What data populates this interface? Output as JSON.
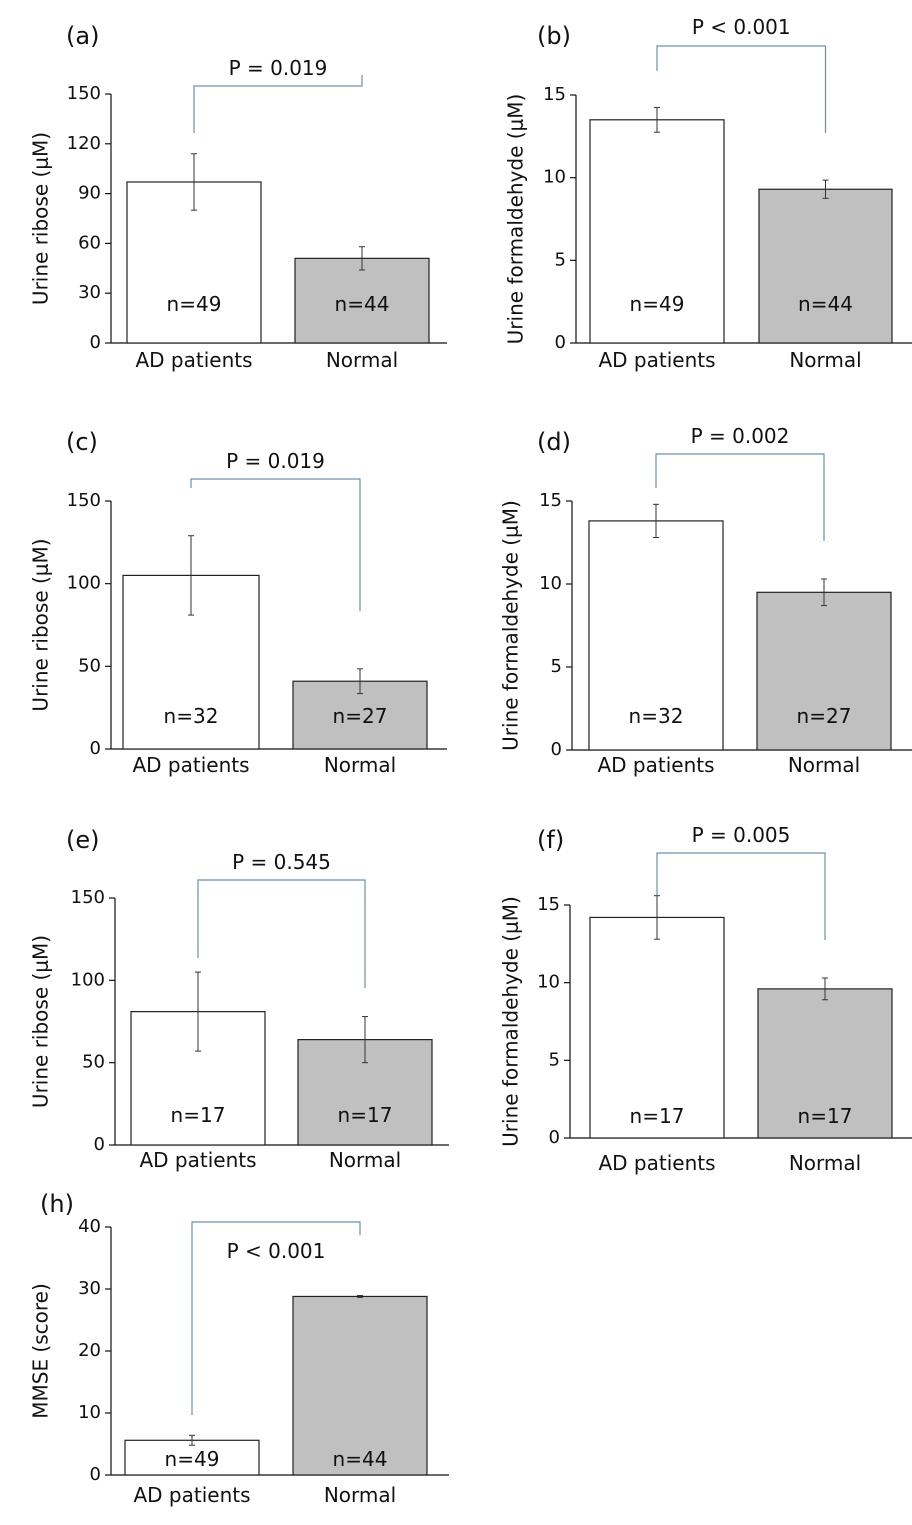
{
  "colors": {
    "open_bar": "#ffffff",
    "filled_bar": "#c0c0c0",
    "bracket": "#6f8fa6",
    "axis": "#111111"
  },
  "chart_data": [
    {
      "panel": "(a)",
      "type": "bar",
      "ylabel": "Urine ribose (μM)",
      "ylim": [
        0,
        150
      ],
      "yticks": [
        0,
        30,
        60,
        90,
        120,
        150
      ],
      "categories": [
        "AD patients",
        "Normal"
      ],
      "values": [
        97,
        51
      ],
      "errors": [
        17,
        7
      ],
      "n_labels": [
        "n=49",
        "n=44"
      ],
      "p_label": "P = 0.019"
    },
    {
      "panel": "(b)",
      "type": "bar",
      "ylabel": "Urine formaldehyde (μM)",
      "ylim": [
        0,
        15
      ],
      "yticks": [
        0,
        5,
        10,
        15
      ],
      "categories": [
        "AD patients",
        "Normal"
      ],
      "values": [
        13.5,
        9.3
      ],
      "errors": [
        0.75,
        0.55
      ],
      "n_labels": [
        "n=49",
        "n=44"
      ],
      "p_label": "P < 0.001"
    },
    {
      "panel": "(c)",
      "type": "bar",
      "ylabel": "Urine ribose (μM)",
      "ylim": [
        0,
        150
      ],
      "yticks": [
        0,
        50,
        100,
        150
      ],
      "categories": [
        "AD patients",
        "Normal"
      ],
      "values": [
        105,
        41
      ],
      "errors": [
        24,
        7.5
      ],
      "n_labels": [
        "n=32",
        "n=27"
      ],
      "p_label": "P = 0.019"
    },
    {
      "panel": "(d)",
      "type": "bar",
      "ylabel": "Urine formaldehyde (μM)",
      "ylim": [
        0,
        15
      ],
      "yticks": [
        0,
        5,
        10,
        15
      ],
      "categories": [
        "AD patients",
        "Normal"
      ],
      "values": [
        13.8,
        9.5
      ],
      "errors": [
        1.0,
        0.8
      ],
      "n_labels": [
        "n=32",
        "n=27"
      ],
      "p_label": "P = 0.002"
    },
    {
      "panel": "(e)",
      "type": "bar",
      "ylabel": "Urine ribose (μM)",
      "ylim": [
        0,
        150
      ],
      "yticks": [
        0,
        50,
        100,
        150
      ],
      "categories": [
        "AD patients",
        "Normal"
      ],
      "values": [
        81,
        64
      ],
      "errors": [
        24,
        14
      ],
      "n_labels": [
        "n=17",
        "n=17"
      ],
      "p_label": "P = 0.545"
    },
    {
      "panel": "(f)",
      "type": "bar",
      "ylabel": "Urine formaldehyde (μM)",
      "ylim": [
        0,
        15
      ],
      "yticks": [
        0,
        5,
        10,
        15
      ],
      "categories": [
        "AD patients",
        "Normal"
      ],
      "values": [
        14.2,
        9.6
      ],
      "errors": [
        1.4,
        0.7
      ],
      "n_labels": [
        "n=17",
        "n=17"
      ],
      "p_label": "P = 0.005"
    },
    {
      "panel": "(h)",
      "type": "bar",
      "ylabel": "MMSE (score)",
      "ylim": [
        0,
        40
      ],
      "yticks": [
        0,
        10,
        20,
        30,
        40
      ],
      "categories": [
        "AD patients",
        "Normal"
      ],
      "values": [
        5.6,
        28.8
      ],
      "errors": [
        0.8,
        0.15
      ],
      "n_labels": [
        "n=49",
        "n=44"
      ],
      "p_label": "P < 0.001"
    }
  ]
}
